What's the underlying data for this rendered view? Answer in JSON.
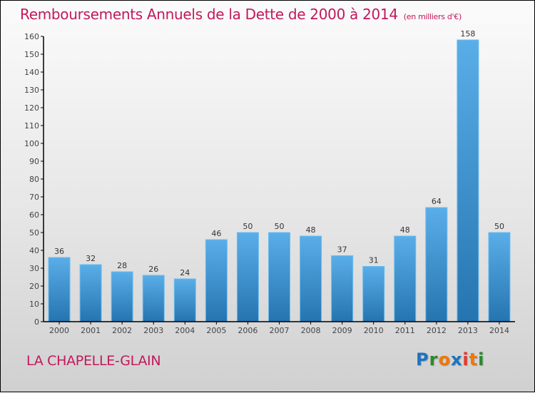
{
  "header": {
    "title": "Remboursements Annuels de la Dette de 2000 à 2014",
    "subtitle": "(en milliers d'€)"
  },
  "footer": {
    "commune": "LA CHAPELLE-GLAIN",
    "logo": {
      "letters": [
        {
          "char": "P",
          "color": "#1e73be"
        },
        {
          "char": "r",
          "color": "#2a8a2a"
        },
        {
          "char": "o",
          "color": "#f07800"
        },
        {
          "char": "x",
          "color": "#1e73be"
        },
        {
          "char": "i",
          "color": "#e53a2a"
        },
        {
          "char": "t",
          "color": "#f07800"
        },
        {
          "char": "i",
          "color": "#2a8a2a"
        }
      ]
    }
  },
  "colors": {
    "title": "#c2185b",
    "bar_top": "#5aaee8",
    "bar_bottom": "#2574b0",
    "axis": "#000000"
  },
  "chart_data": {
    "type": "bar",
    "title": "Remboursements Annuels de la Dette de 2000 à 2014",
    "subtitle": "(en milliers d'€)",
    "xlabel": "",
    "ylabel": "",
    "categories": [
      "2000",
      "2001",
      "2002",
      "2003",
      "2004",
      "2005",
      "2006",
      "2007",
      "2008",
      "2009",
      "2010",
      "2011",
      "2012",
      "2013",
      "2014"
    ],
    "values": [
      36,
      32,
      28,
      26,
      24,
      46,
      50,
      50,
      48,
      37,
      31,
      48,
      64,
      158,
      50
    ],
    "ylim": [
      0,
      160
    ],
    "yticks": [
      0,
      10,
      20,
      30,
      40,
      50,
      60,
      70,
      80,
      90,
      100,
      110,
      120,
      130,
      140,
      150,
      160
    ],
    "grid": false,
    "legend": "none",
    "data_labels": true
  }
}
